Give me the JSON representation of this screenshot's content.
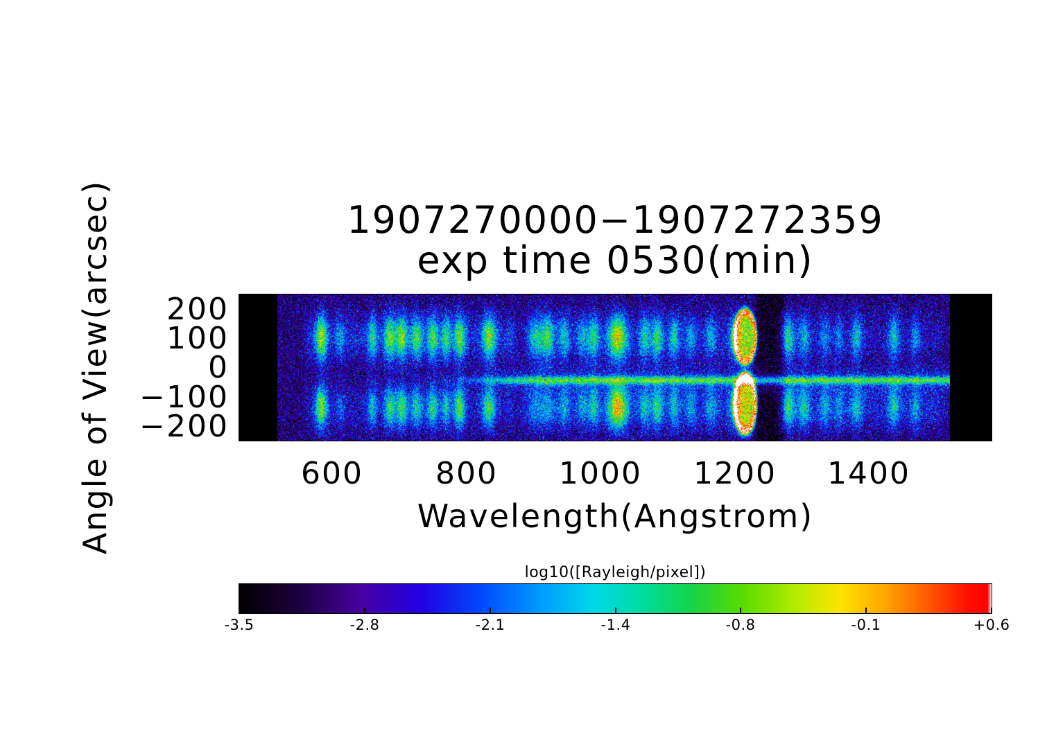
{
  "chart_data": {
    "type": "heatmap",
    "title_lines": [
      "1907270000−1907272359",
      "exp time 0530(min)"
    ],
    "xlabel": "Wavelength(Angstrom)",
    "ylabel": "Angle of View(arcsec)",
    "x_axis": {
      "range": [
        462,
        1583
      ],
      "ticks": [
        600,
        800,
        1000,
        1200,
        1400
      ],
      "tick_labels": [
        "600",
        "800",
        "1000",
        "1200",
        "1400"
      ]
    },
    "y_axis": {
      "range": [
        -248,
        252
      ],
      "ticks": [
        200,
        100,
        0,
        -100,
        -200
      ],
      "tick_labels": [
        "200",
        "100",
        "0",
        "−100",
        "−200"
      ]
    },
    "colorbar": {
      "label": "log10([Rayleigh/pixel])",
      "min": -3.5,
      "max": 0.6,
      "ticks": [
        -3.5,
        -2.8,
        -2.1,
        -1.4,
        -0.8,
        -0.1,
        0.6
      ],
      "tick_labels": [
        "-3.5",
        "-2.8",
        "-2.1",
        "-1.4",
        "-0.8",
        "-0.1",
        "+0.6"
      ]
    },
    "exposed_wavelength_range": [
      518,
      1521
    ],
    "background_log10": -2.95,
    "noise_sigma": 0.42,
    "vertical_profile": {
      "top_center": 105,
      "top_sigma": 55,
      "bottom_center": -135,
      "bottom_sigma": 52
    },
    "horizontal_band": {
      "angle_center": -42,
      "sigma_narrow": 9,
      "amp_narrow": 1.5,
      "sigma_wide": 30,
      "amp_wide": 0.45,
      "fade_start": 740,
      "fade_full": 920
    },
    "emission_lines": [
      {
        "wavelength": 584,
        "top": 2.0,
        "bottom": 2.0,
        "sigma": 6
      },
      {
        "wavelength": 612,
        "top": 0.7,
        "bottom": 0.5,
        "sigma": 5
      },
      {
        "wavelength": 660,
        "top": 1.3,
        "bottom": 1.1,
        "sigma": 5
      },
      {
        "wavelength": 686,
        "top": 1.7,
        "bottom": 1.5,
        "sigma": 6
      },
      {
        "wavelength": 704,
        "top": 1.8,
        "bottom": 1.6,
        "sigma": 6
      },
      {
        "wavelength": 726,
        "top": 1.5,
        "bottom": 1.3,
        "sigma": 6
      },
      {
        "wavelength": 750,
        "top": 1.6,
        "bottom": 1.4,
        "sigma": 6
      },
      {
        "wavelength": 770,
        "top": 1.4,
        "bottom": 1.2,
        "sigma": 5
      },
      {
        "wavelength": 790,
        "top": 1.7,
        "bottom": 1.8,
        "sigma": 6
      },
      {
        "wavelength": 834,
        "top": 1.8,
        "bottom": 1.6,
        "sigma": 7
      },
      {
        "wavelength": 866,
        "top": 0.6,
        "bottom": 0.4,
        "sigma": 6
      },
      {
        "wavelength": 904,
        "top": 1.2,
        "bottom": 0.6,
        "sigma": 8
      },
      {
        "wavelength": 922,
        "top": 1.5,
        "bottom": 0.7,
        "sigma": 7
      },
      {
        "wavelength": 946,
        "top": 1.1,
        "bottom": 0.8,
        "sigma": 6
      },
      {
        "wavelength": 973,
        "top": 0.9,
        "bottom": 0.7,
        "sigma": 6
      },
      {
        "wavelength": 990,
        "top": 1.4,
        "bottom": 1.1,
        "sigma": 6
      },
      {
        "wavelength": 1026,
        "top": 2.3,
        "bottom": 2.5,
        "sigma": 10
      },
      {
        "wavelength": 1066,
        "top": 1.2,
        "bottom": 1.0,
        "sigma": 6
      },
      {
        "wavelength": 1085,
        "top": 1.5,
        "bottom": 1.3,
        "sigma": 6
      },
      {
        "wavelength": 1110,
        "top": 1.2,
        "bottom": 1.0,
        "sigma": 6
      },
      {
        "wavelength": 1135,
        "top": 0.8,
        "bottom": 0.7,
        "sigma": 6
      },
      {
        "wavelength": 1165,
        "top": 0.9,
        "bottom": 0.8,
        "sigma": 6
      },
      {
        "wavelength": 1200,
        "top": 1.1,
        "bottom": 1.0,
        "sigma": 6
      },
      {
        "wavelength": 1280,
        "top": 1.5,
        "bottom": 1.4,
        "sigma": 7
      },
      {
        "wavelength": 1304,
        "top": 1.0,
        "bottom": 1.1,
        "sigma": 6
      },
      {
        "wavelength": 1335,
        "top": 0.8,
        "bottom": 0.8,
        "sigma": 6
      },
      {
        "wavelength": 1356,
        "top": 0.7,
        "bottom": 0.7,
        "sigma": 5
      },
      {
        "wavelength": 1382,
        "top": 1.1,
        "bottom": 1.0,
        "sigma": 6
      },
      {
        "wavelength": 1438,
        "top": 1.2,
        "bottom": 1.1,
        "sigma": 6
      },
      {
        "wavelength": 1470,
        "top": 0.8,
        "bottom": 0.8,
        "sigma": 5
      }
    ],
    "diffuse_continuum": [
      {
        "range": [
          560,
          860
        ],
        "top": 0.5,
        "bottom": 0.35
      },
      {
        "range": [
          880,
          1230
        ],
        "top": 0.4,
        "bottom": 0.5
      },
      {
        "range": [
          1270,
          1515
        ],
        "top": 0.3,
        "bottom": 0.5
      }
    ],
    "dark_bands": [
      {
        "range": [
          1232,
          1275
        ],
        "depth": 0.5
      }
    ],
    "ring_features": [
      {
        "wavelength": 1216,
        "angle_center": 108,
        "radius_wl": 16,
        "radius_angle": 88,
        "fill": 2.0,
        "rim": 1.3,
        "rim_width": 0.15
      },
      {
        "wavelength": 1216,
        "angle_center": -122,
        "radius_wl": 16,
        "radius_angle": 98,
        "fill": 2.1,
        "rim": 1.4,
        "rim_width": 0.15
      }
    ],
    "colormap_stops": [
      [
        0.0,
        "#000000"
      ],
      [
        0.08,
        "#1c0040"
      ],
      [
        0.16,
        "#4600a0"
      ],
      [
        0.24,
        "#2200e0"
      ],
      [
        0.32,
        "#0048ff"
      ],
      [
        0.4,
        "#009cff"
      ],
      [
        0.47,
        "#00d8e8"
      ],
      [
        0.53,
        "#00dca8"
      ],
      [
        0.6,
        "#14d448"
      ],
      [
        0.67,
        "#58dc00"
      ],
      [
        0.74,
        "#b4ec00"
      ],
      [
        0.8,
        "#ffe400"
      ],
      [
        0.86,
        "#ffa400"
      ],
      [
        0.92,
        "#ff5400"
      ],
      [
        0.97,
        "#ff0c00"
      ],
      [
        0.995,
        "#ff0000"
      ],
      [
        1.0,
        "#ffffff"
      ]
    ]
  }
}
